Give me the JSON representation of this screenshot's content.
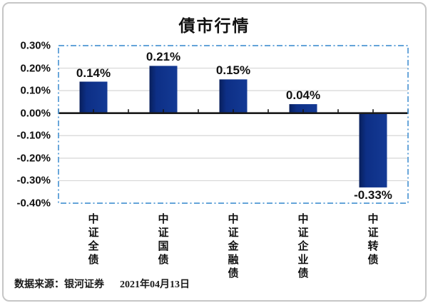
{
  "chart_data": {
    "type": "bar",
    "title": "債市行情",
    "categories": [
      "中证全债",
      "中证国债",
      "中证金融债",
      "中证企业债",
      "中证转债"
    ],
    "values": [
      0.14,
      0.21,
      0.15,
      0.04,
      -0.33
    ],
    "value_labels": [
      "0.14%",
      "0.21%",
      "0.15%",
      "0.04%",
      "-0.33%"
    ],
    "xlabel": "",
    "ylabel": "",
    "ylim": [
      -0.4,
      0.3
    ],
    "ytick_step": 0.1,
    "ytick_labels": [
      "0.30%",
      "0.20%",
      "0.10%",
      "0.00%",
      "-0.10%",
      "-0.20%",
      "-0.30%",
      "-0.40%"
    ],
    "grid": true,
    "legend": false,
    "plot_border_style": "dash-dot",
    "colors": {
      "bar_fill": "#0d2f86",
      "bar_fill_dark": "#081f5c",
      "bar_fill_light": "#143a94",
      "plot_border": "#4f97d4",
      "gridline": "#d6d6d6",
      "axis": "#1a1a1a",
      "text": "#111111"
    }
  },
  "footer": {
    "source_label": "数据来源：银河证券",
    "date": "2021年04月13日"
  }
}
